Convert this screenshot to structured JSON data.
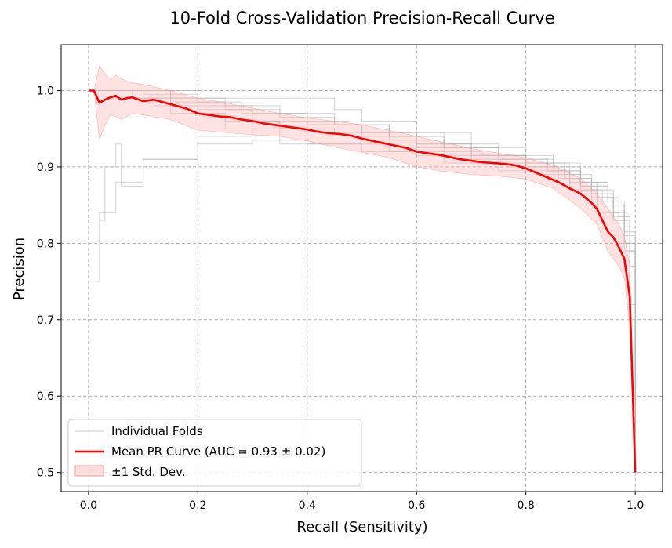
{
  "chart_data": {
    "type": "line",
    "title": "10-Fold Cross-Validation Precision-Recall Curve",
    "xlabel": "Recall (Sensitivity)",
    "ylabel": "Precision",
    "xlim": [
      -0.05,
      1.05
    ],
    "ylim": [
      0.475,
      1.06
    ],
    "xticks": [
      0.0,
      0.2,
      0.4,
      0.6,
      0.8,
      1.0
    ],
    "xtick_labels": [
      "0.0",
      "0.2",
      "0.4",
      "0.6",
      "0.8",
      "1.0"
    ],
    "yticks": [
      0.5,
      0.6,
      0.7,
      0.8,
      0.9,
      1.0
    ],
    "ytick_labels": [
      "0.5",
      "0.6",
      "0.7",
      "0.8",
      "0.9",
      "1.0"
    ],
    "grid": true,
    "legend_position": "lower-left",
    "legend": [
      "Individual Folds",
      "Mean PR Curve (AUC = 0.93 ± 0.02)",
      "±1 Std. Dev."
    ],
    "colors": {
      "mean": "#ff0000",
      "band": "#ffb3b3",
      "folds": "#b0b0b0"
    },
    "series": [
      {
        "kind": "mean",
        "x": [
          0.0,
          0.01,
          0.02,
          0.03,
          0.04,
          0.05,
          0.06,
          0.07,
          0.08,
          0.1,
          0.12,
          0.14,
          0.16,
          0.18,
          0.2,
          0.22,
          0.24,
          0.26,
          0.28,
          0.3,
          0.32,
          0.34,
          0.36,
          0.38,
          0.4,
          0.42,
          0.44,
          0.46,
          0.48,
          0.5,
          0.52,
          0.54,
          0.56,
          0.58,
          0.6,
          0.62,
          0.64,
          0.66,
          0.68,
          0.7,
          0.72,
          0.74,
          0.76,
          0.78,
          0.8,
          0.82,
          0.84,
          0.86,
          0.88,
          0.9,
          0.92,
          0.93,
          0.94,
          0.95,
          0.96,
          0.97,
          0.98,
          0.99,
          1.0
        ],
        "y": [
          1.0,
          1.0,
          0.984,
          0.988,
          0.991,
          0.993,
          0.988,
          0.99,
          0.991,
          0.986,
          0.988,
          0.984,
          0.98,
          0.976,
          0.97,
          0.968,
          0.966,
          0.965,
          0.962,
          0.96,
          0.957,
          0.955,
          0.953,
          0.951,
          0.949,
          0.946,
          0.944,
          0.943,
          0.941,
          0.937,
          0.934,
          0.931,
          0.928,
          0.925,
          0.92,
          0.918,
          0.916,
          0.913,
          0.91,
          0.908,
          0.906,
          0.905,
          0.904,
          0.902,
          0.898,
          0.892,
          0.886,
          0.88,
          0.872,
          0.865,
          0.853,
          0.845,
          0.83,
          0.815,
          0.808,
          0.795,
          0.78,
          0.73,
          0.5
        ]
      },
      {
        "kind": "band_upper",
        "x": [
          0.0,
          0.01,
          0.02,
          0.03,
          0.04,
          0.05,
          0.06,
          0.08,
          0.1,
          0.15,
          0.2,
          0.25,
          0.3,
          0.35,
          0.4,
          0.45,
          0.5,
          0.55,
          0.6,
          0.65,
          0.7,
          0.75,
          0.8,
          0.85,
          0.9,
          0.93,
          0.95,
          0.97,
          0.98,
          0.99,
          1.0
        ],
        "y": [
          1.0,
          1.0,
          1.032,
          1.022,
          1.014,
          1.02,
          1.015,
          1.01,
          1.008,
          1.0,
          0.99,
          0.984,
          0.977,
          0.97,
          0.964,
          0.96,
          0.955,
          0.948,
          0.94,
          0.932,
          0.924,
          0.918,
          0.912,
          0.902,
          0.885,
          0.865,
          0.845,
          0.825,
          0.81,
          0.77,
          0.5
        ]
      },
      {
        "kind": "band_lower",
        "x": [
          0.0,
          0.01,
          0.02,
          0.03,
          0.04,
          0.05,
          0.06,
          0.08,
          0.1,
          0.15,
          0.2,
          0.25,
          0.3,
          0.35,
          0.4,
          0.45,
          0.5,
          0.55,
          0.6,
          0.65,
          0.7,
          0.75,
          0.8,
          0.85,
          0.9,
          0.93,
          0.95,
          0.97,
          0.98,
          0.99,
          1.0
        ],
        "y": [
          1.0,
          1.0,
          0.936,
          0.954,
          0.968,
          0.966,
          0.962,
          0.97,
          0.968,
          0.962,
          0.948,
          0.945,
          0.942,
          0.94,
          0.934,
          0.926,
          0.919,
          0.912,
          0.9,
          0.894,
          0.89,
          0.888,
          0.884,
          0.872,
          0.846,
          0.825,
          0.79,
          0.77,
          0.755,
          0.69,
          0.5
        ]
      },
      {
        "kind": "fold",
        "x": [
          0.01,
          0.02,
          0.05,
          0.1,
          0.2,
          0.3,
          0.4,
          0.5,
          0.6,
          0.7,
          0.8,
          0.88,
          0.93,
          0.97,
          0.99,
          1.0
        ],
        "y": [
          0.75,
          0.84,
          0.88,
          0.91,
          0.93,
          0.935,
          0.93,
          0.92,
          0.915,
          0.905,
          0.895,
          0.87,
          0.84,
          0.8,
          0.72,
          0.5
        ]
      },
      {
        "kind": "fold",
        "x": [
          0.02,
          0.03,
          0.05,
          0.06,
          0.1,
          0.2,
          0.3,
          0.4,
          0.5,
          0.6,
          0.7,
          0.8,
          0.87,
          0.92,
          0.96,
          0.98,
          1.0
        ],
        "y": [
          0.83,
          0.9,
          0.93,
          0.875,
          0.91,
          0.94,
          0.95,
          0.955,
          0.945,
          0.93,
          0.915,
          0.9,
          0.885,
          0.86,
          0.83,
          0.79,
          0.5
        ]
      },
      {
        "kind": "fold",
        "x": [
          0.0,
          0.05,
          0.1,
          0.2,
          0.3,
          0.4,
          0.45,
          0.5,
          0.6,
          0.7,
          0.8,
          0.9,
          0.95,
          0.98,
          1.0
        ],
        "y": [
          1.0,
          1.0,
          0.995,
          0.99,
          0.99,
          0.99,
          0.975,
          0.96,
          0.945,
          0.925,
          0.905,
          0.88,
          0.85,
          0.8,
          0.5
        ]
      },
      {
        "kind": "fold",
        "x": [
          0.0,
          0.1,
          0.2,
          0.25,
          0.3,
          0.4,
          0.5,
          0.6,
          0.7,
          0.8,
          0.86,
          0.92,
          0.96,
          0.99,
          1.0
        ],
        "y": [
          1.0,
          1.0,
          0.97,
          0.95,
          0.96,
          0.955,
          0.94,
          0.925,
          0.91,
          0.9,
          0.885,
          0.865,
          0.835,
          0.77,
          0.5
        ]
      },
      {
        "kind": "fold",
        "x": [
          0.0,
          0.08,
          0.15,
          0.25,
          0.35,
          0.45,
          0.55,
          0.65,
          0.75,
          0.85,
          0.9,
          0.95,
          0.98,
          1.0
        ],
        "y": [
          1.0,
          0.99,
          0.985,
          0.975,
          0.965,
          0.955,
          0.945,
          0.93,
          0.915,
          0.895,
          0.875,
          0.845,
          0.81,
          0.5
        ]
      },
      {
        "kind": "fold",
        "x": [
          0.0,
          0.12,
          0.2,
          0.3,
          0.35,
          0.45,
          0.55,
          0.65,
          0.75,
          0.82,
          0.9,
          0.94,
          0.98,
          1.0
        ],
        "y": [
          1.0,
          0.98,
          0.975,
          0.96,
          0.93,
          0.93,
          0.92,
          0.905,
          0.895,
          0.89,
          0.87,
          0.85,
          0.8,
          0.5
        ]
      },
      {
        "kind": "fold",
        "x": [
          0.0,
          0.1,
          0.2,
          0.3,
          0.4,
          0.48,
          0.55,
          0.65,
          0.75,
          0.85,
          0.9,
          0.95,
          0.97,
          0.99,
          1.0
        ],
        "y": [
          1.0,
          0.99,
          0.98,
          0.97,
          0.96,
          0.955,
          0.94,
          0.925,
          0.91,
          0.9,
          0.88,
          0.86,
          0.835,
          0.79,
          0.5
        ]
      },
      {
        "kind": "fold",
        "x": [
          0.0,
          0.15,
          0.25,
          0.35,
          0.45,
          0.55,
          0.65,
          0.72,
          0.8,
          0.88,
          0.93,
          0.96,
          0.99,
          1.0
        ],
        "y": [
          1.0,
          0.97,
          0.96,
          0.95,
          0.945,
          0.935,
          0.92,
          0.915,
          0.905,
          0.88,
          0.86,
          0.83,
          0.76,
          0.5
        ]
      },
      {
        "kind": "fold",
        "x": [
          0.0,
          0.1,
          0.2,
          0.28,
          0.4,
          0.5,
          0.6,
          0.7,
          0.8,
          0.87,
          0.92,
          0.96,
          0.985,
          1.0
        ],
        "y": [
          1.0,
          1.0,
          0.985,
          0.97,
          0.955,
          0.945,
          0.93,
          0.915,
          0.905,
          0.89,
          0.87,
          0.84,
          0.79,
          0.5
        ]
      },
      {
        "kind": "fold",
        "x": [
          0.0,
          0.05,
          0.15,
          0.25,
          0.35,
          0.45,
          0.55,
          0.65,
          0.75,
          0.84,
          0.9,
          0.95,
          0.98,
          1.0
        ],
        "y": [
          1.0,
          1.0,
          0.99,
          0.98,
          0.97,
          0.955,
          0.94,
          0.925,
          0.91,
          0.895,
          0.875,
          0.855,
          0.815,
          0.5
        ]
      }
    ]
  }
}
